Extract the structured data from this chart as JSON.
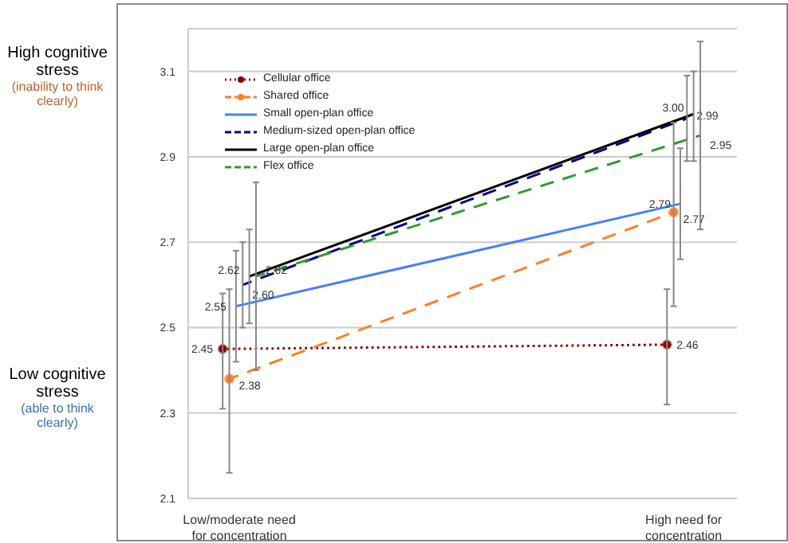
{
  "chart_data": {
    "type": "line",
    "categories": [
      "Low/moderate need for concentration",
      "High need for concentration"
    ],
    "ylim": [
      2.1,
      3.2
    ],
    "yticks": [
      2.1,
      2.3,
      2.5,
      2.7,
      2.9,
      3.1
    ],
    "grid": "y",
    "legend": "top left",
    "annotations": [
      "High cognitive stress",
      "(inability to think clearly)",
      "Low cognitive stress",
      "(able to think clearly)"
    ],
    "series": [
      {
        "name": "Cellular office",
        "color": "#8b0000",
        "values": [
          2.45,
          2.46
        ],
        "value_labels": [
          "2.45",
          "2.46"
        ],
        "errors": [
          [
            2.31,
            2.58
          ],
          [
            2.32,
            2.59
          ]
        ],
        "marker": "circle",
        "line_style": "dotted"
      },
      {
        "name": "Shared office",
        "color": "#ff7f27",
        "values": [
          2.38,
          2.77
        ],
        "value_labels": [
          "2.38",
          "2.77"
        ],
        "errors": [
          [
            2.16,
            2.59
          ],
          [
            2.55,
            2.98
          ]
        ],
        "marker": "circle",
        "line_style": "dashed"
      },
      {
        "name": "Small open-plan office",
        "color": "#4a7fff",
        "values": [
          2.55,
          2.79
        ],
        "value_labels": [
          "2.55",
          "2.79"
        ],
        "errors": [
          [
            2.42,
            2.68
          ],
          [
            2.66,
            2.92
          ]
        ],
        "marker": "none",
        "line_style": "solid"
      },
      {
        "name": "Medium-sized open-plan office",
        "color": "#00008b",
        "values": [
          2.6,
          2.99
        ],
        "value_labels": [
          "2.60",
          "2.99"
        ],
        "errors": [
          [
            2.5,
            2.7
          ],
          [
            2.89,
            3.09
          ]
        ],
        "marker": "none",
        "line_style": "dashed"
      },
      {
        "name": "Large open-plan office",
        "color": "#000000",
        "values": [
          2.62,
          3.0
        ],
        "value_labels": [
          "2.62",
          "3.00"
        ],
        "errors": [
          [
            2.51,
            2.73
          ],
          [
            2.89,
            3.1
          ]
        ],
        "marker": "none",
        "line_style": "solid"
      },
      {
        "name": "Flex office",
        "color": "#339933",
        "values": [
          2.62,
          2.95
        ],
        "value_labels": [
          "2.62",
          "2.95"
        ],
        "errors": [
          [
            2.4,
            2.84
          ],
          [
            2.73,
            3.17
          ]
        ],
        "marker": "none",
        "line_style": "dashed"
      }
    ]
  }
}
